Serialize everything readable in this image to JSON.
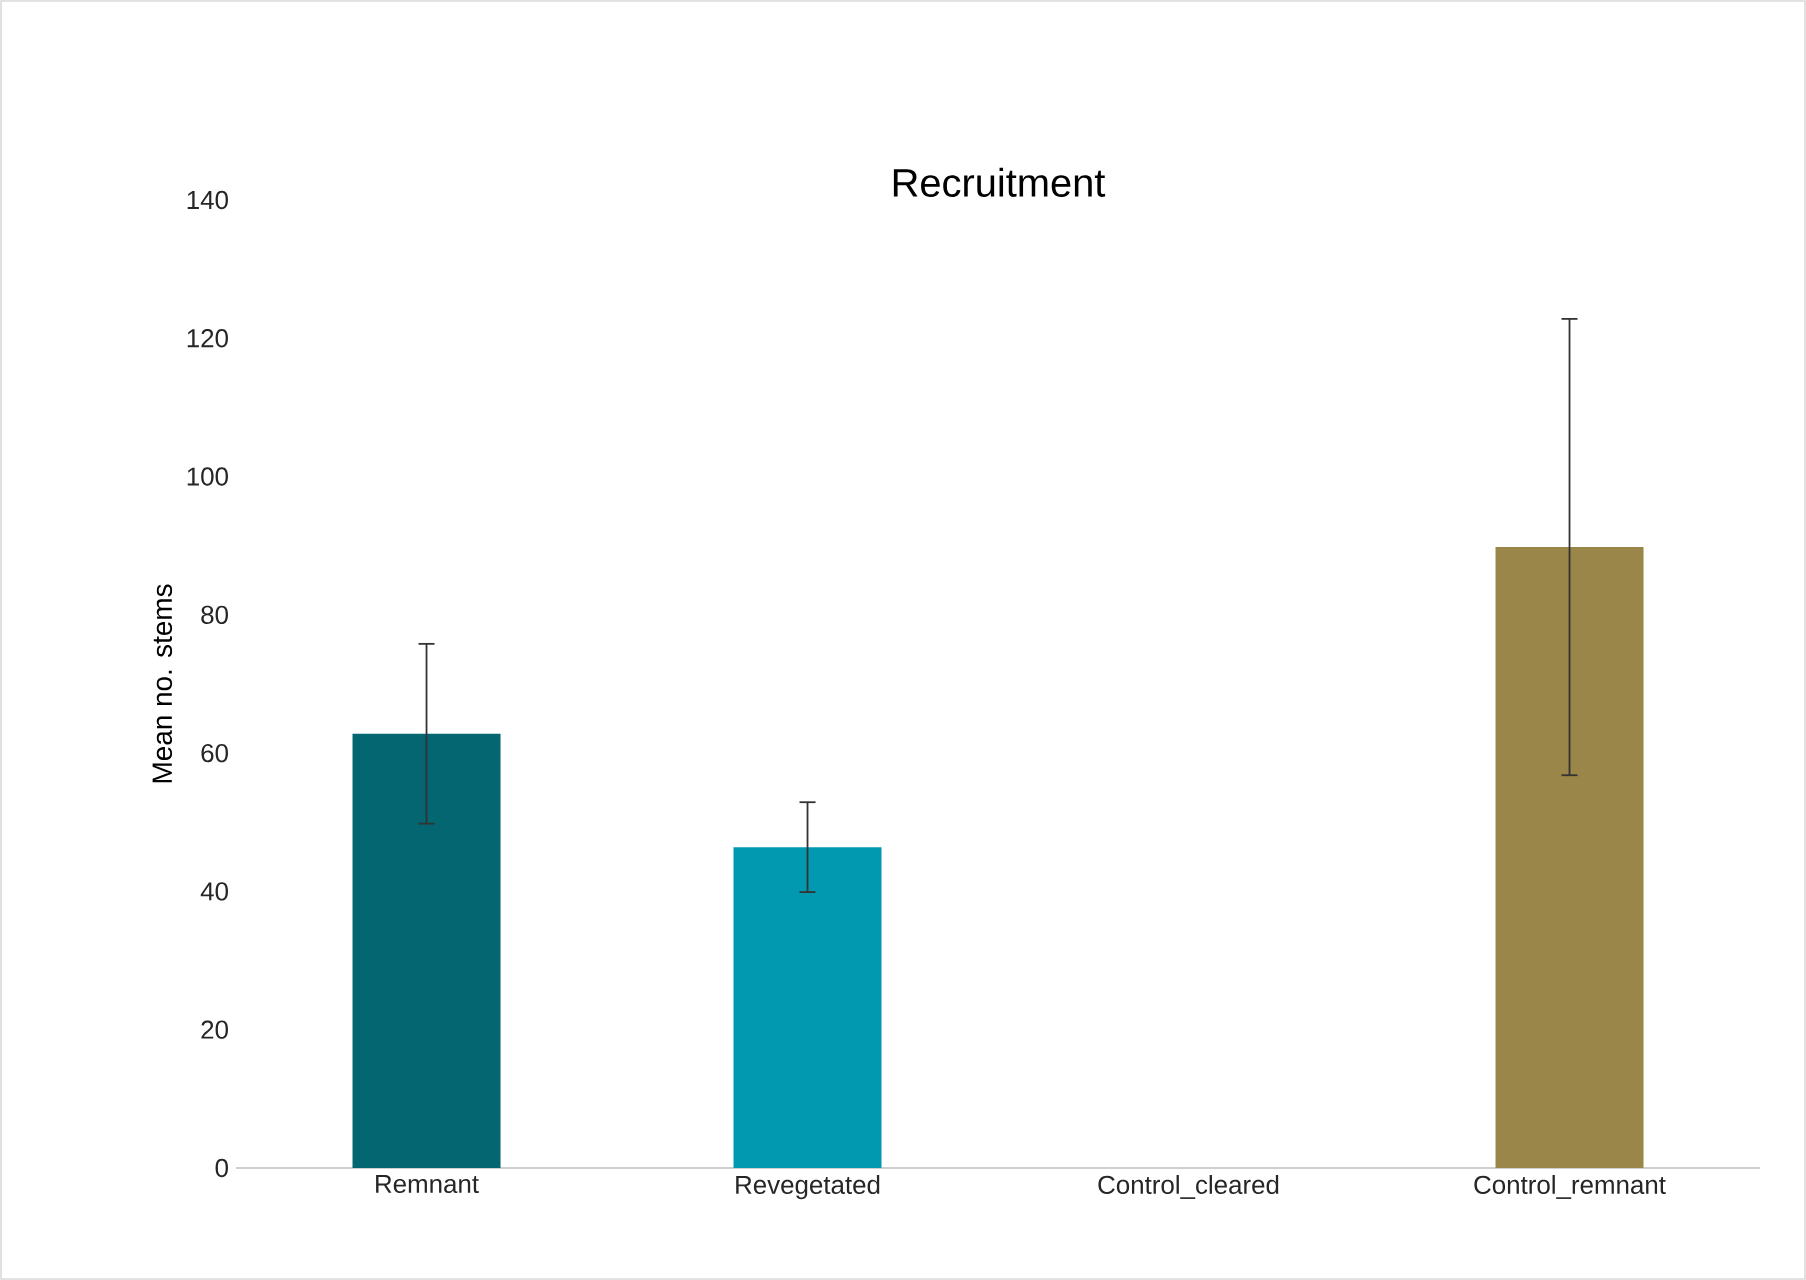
{
  "chart_data": {
    "type": "bar",
    "title": "Recruitment",
    "ylabel": "Mean no. stems",
    "categories": [
      "Remnant",
      "Revegetated",
      "Control_cleared",
      "Control_remnant"
    ],
    "values": [
      62.8,
      46.4,
      0,
      89.8
    ],
    "colors": [
      "#036670",
      "#0199b0",
      "#7f7f7f",
      "#9a8649"
    ],
    "errors": [
      13,
      6.5,
      null,
      33
    ],
    "ylim": [
      0,
      140
    ],
    "yticks": [
      0,
      20,
      40,
      60,
      80,
      100,
      120,
      140
    ],
    "grid": false
  }
}
